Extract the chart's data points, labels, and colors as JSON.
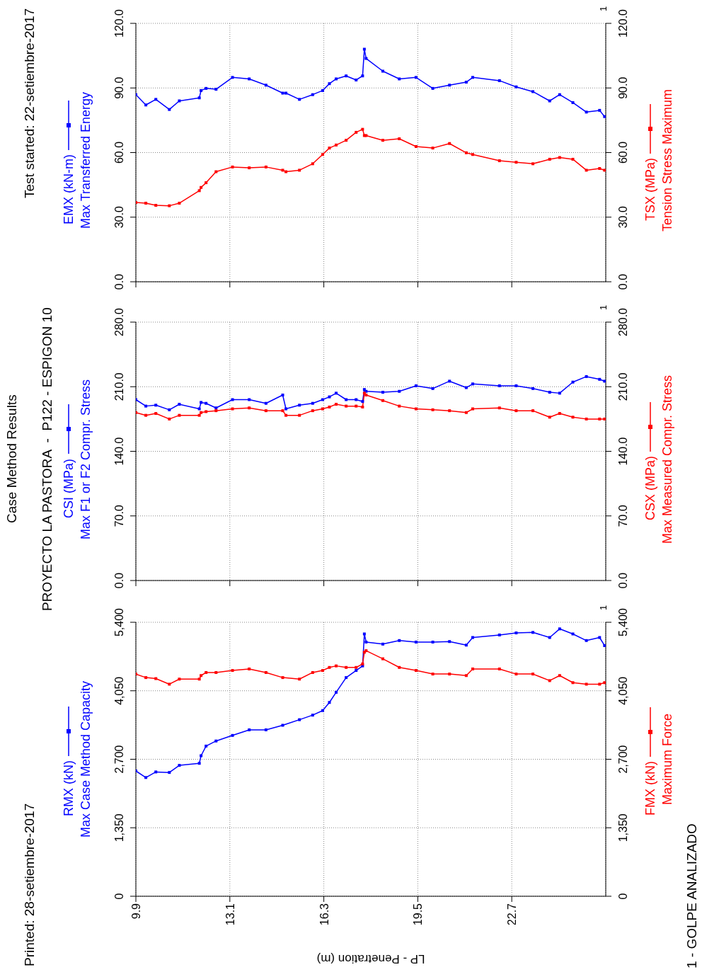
{
  "chart_data": [
    {
      "type": "line",
      "xlabel": "LP - Penetration (m)",
      "ylabel": "Max Case Method Capacity",
      "y2label": "Maximum Force",
      "annotations": [
        "Printed: 28-setiembre-2017",
        "1 - GOLPE ANALIZADO",
        "1"
      ],
      "x": [
        9.9,
        10.24,
        10.58,
        11.04,
        11.38,
        12.06,
        12.12,
        12.29,
        12.63,
        13.19,
        13.76,
        14.33,
        14.9,
        15.47,
        15.92,
        16.26,
        16.49,
        16.72,
        17.06,
        17.4,
        17.62,
        17.68,
        17.74,
        18.31,
        18.87,
        19.44,
        20.01,
        20.58,
        21.15,
        21.37,
        22.28,
        22.85,
        23.42,
        23.99,
        24.33,
        24.78,
        25.24,
        25.69,
        25.86
      ],
      "series": [
        {
          "name": "RMX (kN)",
          "color": "#0000ff",
          "values": [
            2470,
            2340,
            2450,
            2440,
            2580,
            2620,
            2770,
            2960,
            3060,
            3170,
            3280,
            3280,
            3370,
            3480,
            3570,
            3660,
            3820,
            4020,
            4310,
            4450,
            4540,
            5170,
            5010,
            4970,
            5040,
            5010,
            5010,
            5020,
            4950,
            5100,
            5150,
            5190,
            5200,
            5100,
            5270,
            5170,
            5040,
            5100,
            4940
          ]
        },
        {
          "name": "FMX (kN)",
          "color": "#ff0000",
          "axis": "y2",
          "values": [
            4380,
            4310,
            4290,
            4180,
            4280,
            4280,
            4350,
            4410,
            4410,
            4450,
            4480,
            4410,
            4310,
            4280,
            4410,
            4450,
            4510,
            4540,
            4510,
            4510,
            4580,
            4810,
            4840,
            4680,
            4510,
            4450,
            4380,
            4380,
            4350,
            4480,
            4480,
            4380,
            4380,
            4250,
            4350,
            4210,
            4180,
            4180,
            4210
          ]
        }
      ],
      "xlim": [
        9.9,
        25.9
      ],
      "xticks": [
        9.9,
        13.1,
        16.3,
        19.5,
        22.7
      ],
      "ylim": [
        0,
        5400
      ],
      "yticks": [
        0,
        {
          "value": 1350,
          "label": "1,350"
        },
        {
          "value": 2700,
          "label": "2,700"
        },
        {
          "value": 4050,
          "label": "4,050"
        },
        {
          "value": 5400,
          "label": "5,400"
        }
      ],
      "y2lim": [
        0,
        5400
      ],
      "y2ticks": [
        0,
        {
          "value": 1350,
          "label": "1,350"
        },
        {
          "value": 2700,
          "label": "2,700"
        },
        {
          "value": 4050,
          "label": "4,050"
        },
        {
          "value": 5400,
          "label": "5,400"
        }
      ],
      "grid": true,
      "marker": "square",
      "line_style": "solid"
    },
    {
      "type": "line",
      "subtitle": "PROYECTO LA PASTORA  -  P122 - ESPIGON 10",
      "ylabel": "Max F1 or F2 Compr. Stress",
      "y2label": "Max Measured Compr. Stress",
      "annotations": [
        "Case Method Results",
        "1"
      ],
      "x": [
        9.9,
        10.24,
        10.58,
        11.04,
        11.38,
        12.06,
        12.12,
        12.29,
        12.63,
        13.19,
        13.76,
        14.33,
        14.9,
        15.01,
        15.47,
        15.92,
        16.26,
        16.49,
        16.72,
        17.06,
        17.4,
        17.62,
        17.68,
        17.74,
        18.31,
        18.87,
        19.44,
        20.01,
        20.58,
        21.15,
        21.37,
        22.28,
        22.85,
        23.42,
        23.99,
        24.33,
        24.78,
        25.24,
        25.69,
        25.86
      ],
      "series": [
        {
          "name": "CSI (MPa)",
          "color": "#0000ff",
          "values": [
            196,
            189,
            190,
            185,
            191,
            186,
            193,
            192,
            187,
            196,
            196,
            192,
            201,
            186,
            190,
            192,
            196,
            199,
            203,
            196,
            196,
            194,
            207,
            205,
            204,
            205,
            211,
            208,
            216,
            209,
            213,
            211,
            211,
            208,
            204,
            203,
            215,
            221,
            218,
            216
          ]
        },
        {
          "name": "CSX (MPa)",
          "color": "#ff0000",
          "axis": "y2",
          "values": [
            182,
            179,
            181,
            175,
            179,
            179,
            182,
            183,
            184,
            186,
            187,
            184,
            184,
            179,
            179,
            184,
            186,
            188,
            191,
            189,
            189,
            188,
            203,
            201,
            195,
            189,
            186,
            185,
            184,
            182,
            186,
            187,
            184,
            184,
            177,
            181,
            177,
            175,
            175,
            175
          ]
        }
      ],
      "xlim": [
        9.9,
        25.9
      ],
      "xticks": [
        9.9,
        13.1,
        16.3,
        19.5,
        22.7
      ],
      "tick_labels": "y",
      "ylim": [
        0,
        280
      ],
      "yticks": [
        {
          "value": 0,
          "label": "0.0"
        },
        {
          "value": 70,
          "label": "70.0"
        },
        {
          "value": 140,
          "label": "140.0"
        },
        {
          "value": 210,
          "label": "210.0"
        },
        {
          "value": 280,
          "label": "280.0"
        }
      ],
      "y2lim": [
        0,
        280
      ],
      "y2ticks": [
        {
          "value": 0,
          "label": "0.0"
        },
        {
          "value": 70,
          "label": "70.0"
        },
        {
          "value": 140,
          "label": "140.0"
        },
        {
          "value": 210,
          "label": "210.0"
        },
        {
          "value": 280,
          "label": "280.0"
        }
      ],
      "grid": true,
      "marker": "square",
      "line_style": "solid"
    },
    {
      "type": "line",
      "ylabel": "Max Transferred Energy",
      "y2label": "Tension Stress Maximum",
      "annotations": [
        "Test started: 22-setiembre-2017",
        "1"
      ],
      "x": [
        9.9,
        10.24,
        10.58,
        11.04,
        11.38,
        12.06,
        12.12,
        12.29,
        12.63,
        13.19,
        13.76,
        14.33,
        14.9,
        15.01,
        15.47,
        15.92,
        16.26,
        16.49,
        16.72,
        17.06,
        17.4,
        17.62,
        17.68,
        17.74,
        18.31,
        18.87,
        19.44,
        20.01,
        20.58,
        21.15,
        21.37,
        22.28,
        22.85,
        23.42,
        23.99,
        24.33,
        24.78,
        25.24,
        25.69,
        25.86
      ],
      "series": [
        {
          "name": "EMX (kN-m)",
          "color": "#0000ff",
          "values": [
            86.9,
            82.1,
            84.7,
            80.0,
            84.0,
            85.4,
            88.8,
            89.8,
            89.4,
            94.9,
            94.2,
            91.3,
            87.6,
            87.6,
            84.7,
            86.9,
            88.8,
            92.0,
            94.2,
            95.6,
            93.7,
            95.6,
            108.0,
            103.7,
            97.8,
            94.2,
            94.9,
            89.8,
            91.3,
            92.7,
            94.9,
            93.4,
            90.5,
            88.3,
            84.0,
            86.9,
            83.2,
            78.8,
            79.6,
            76.7
          ]
        },
        {
          "name": "TSX (MPa)",
          "color": "#ff0000",
          "axis": "y2",
          "values": [
            36.8,
            36.5,
            35.5,
            35.3,
            36.5,
            42.3,
            43.8,
            46.0,
            51.1,
            53.3,
            52.9,
            53.3,
            51.8,
            51.1,
            51.8,
            54.8,
            59.1,
            62.1,
            63.5,
            65.7,
            69.4,
            70.8,
            67.9,
            67.9,
            65.7,
            66.4,
            62.8,
            62.1,
            64.2,
            59.9,
            59.1,
            56.2,
            55.5,
            54.8,
            56.9,
            57.7,
            56.9,
            51.8,
            52.6,
            51.8
          ]
        }
      ],
      "xlim": [
        9.9,
        25.9
      ],
      "xticks": [
        9.9,
        13.1,
        16.3,
        19.5,
        22.7
      ],
      "tick_labels": "y",
      "ylim": [
        0,
        120
      ],
      "yticks": [
        {
          "value": 0,
          "label": "0.0"
        },
        {
          "value": 30,
          "label": "30.0"
        },
        {
          "value": 60,
          "label": "60.0"
        },
        {
          "value": 90,
          "label": "90.0"
        },
        {
          "value": 120,
          "label": "120.0"
        }
      ],
      "y2lim": [
        0,
        120
      ],
      "y2ticks": [
        {
          "value": 0,
          "label": "0.0"
        },
        {
          "value": 30,
          "label": "30.0"
        },
        {
          "value": 60,
          "label": "60.0"
        },
        {
          "value": 90,
          "label": "90.0"
        },
        {
          "value": 120,
          "label": "120.0"
        }
      ],
      "grid": true,
      "marker": "square",
      "line_style": "solid"
    }
  ]
}
